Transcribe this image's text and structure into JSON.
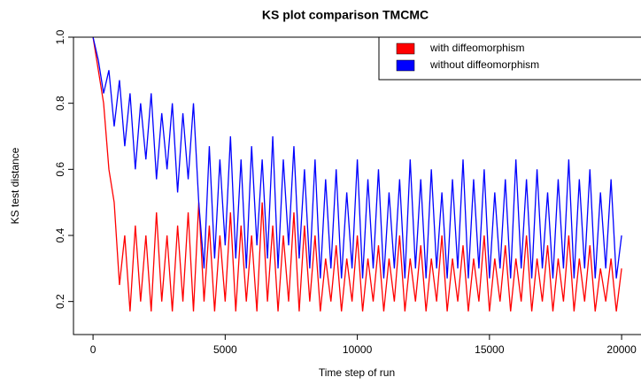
{
  "chart_data": {
    "type": "line",
    "title": "KS plot comparison TMCMC",
    "x_label": "Time step of run",
    "y_label": "KS test distance",
    "x": [
      0,
      200,
      400,
      600,
      800,
      1000,
      1200,
      1400,
      1600,
      1800,
      2000,
      2200,
      2400,
      2600,
      2800,
      3000,
      3200,
      3400,
      3600,
      3800,
      4000,
      4200,
      4400,
      4600,
      4800,
      5000,
      5200,
      5400,
      5600,
      5800,
      6000,
      6200,
      6400,
      6600,
      6800,
      7000,
      7200,
      7400,
      7600,
      7800,
      8000,
      8200,
      8400,
      8600,
      8800,
      9000,
      9200,
      9400,
      9600,
      9800,
      10000,
      10200,
      10400,
      10600,
      10800,
      11000,
      11200,
      11400,
      11600,
      11800,
      12000,
      12200,
      12400,
      12600,
      12800,
      13000,
      13200,
      13400,
      13600,
      13800,
      14000,
      14200,
      14400,
      14600,
      14800,
      15000,
      15200,
      15400,
      15600,
      15800,
      16000,
      16200,
      16400,
      16600,
      16800,
      17000,
      17200,
      17400,
      17600,
      17800,
      18000,
      18200,
      18400,
      18600,
      18800,
      19000,
      19200,
      19400,
      19600,
      19800,
      20000
    ],
    "series": [
      {
        "name": "with diffeomorphism",
        "color": "#ff0000",
        "values": [
          1.0,
          0.9,
          0.8,
          0.6,
          0.5,
          0.25,
          0.4,
          0.17,
          0.43,
          0.2,
          0.4,
          0.17,
          0.47,
          0.2,
          0.4,
          0.17,
          0.43,
          0.2,
          0.47,
          0.17,
          0.5,
          0.2,
          0.43,
          0.17,
          0.4,
          0.2,
          0.47,
          0.17,
          0.43,
          0.2,
          0.4,
          0.17,
          0.5,
          0.2,
          0.43,
          0.17,
          0.4,
          0.2,
          0.47,
          0.17,
          0.43,
          0.2,
          0.4,
          0.17,
          0.33,
          0.2,
          0.37,
          0.17,
          0.33,
          0.2,
          0.4,
          0.17,
          0.33,
          0.2,
          0.37,
          0.17,
          0.33,
          0.2,
          0.4,
          0.17,
          0.33,
          0.2,
          0.37,
          0.17,
          0.33,
          0.2,
          0.4,
          0.17,
          0.33,
          0.2,
          0.37,
          0.17,
          0.33,
          0.2,
          0.4,
          0.17,
          0.33,
          0.2,
          0.37,
          0.17,
          0.33,
          0.2,
          0.4,
          0.17,
          0.33,
          0.2,
          0.37,
          0.17,
          0.33,
          0.2,
          0.4,
          0.17,
          0.33,
          0.2,
          0.37,
          0.17,
          0.3,
          0.2,
          0.33,
          0.17,
          0.3
        ]
      },
      {
        "name": "without diffeomorphism",
        "color": "#0000ff",
        "values": [
          1.0,
          0.93,
          0.83,
          0.9,
          0.73,
          0.87,
          0.67,
          0.83,
          0.6,
          0.8,
          0.63,
          0.83,
          0.57,
          0.77,
          0.6,
          0.8,
          0.53,
          0.77,
          0.57,
          0.8,
          0.5,
          0.3,
          0.67,
          0.33,
          0.63,
          0.37,
          0.7,
          0.33,
          0.63,
          0.3,
          0.67,
          0.37,
          0.63,
          0.33,
          0.7,
          0.3,
          0.63,
          0.37,
          0.67,
          0.33,
          0.6,
          0.3,
          0.63,
          0.27,
          0.57,
          0.3,
          0.6,
          0.27,
          0.53,
          0.3,
          0.63,
          0.27,
          0.57,
          0.3,
          0.6,
          0.27,
          0.53,
          0.3,
          0.57,
          0.27,
          0.63,
          0.3,
          0.57,
          0.27,
          0.6,
          0.3,
          0.53,
          0.27,
          0.57,
          0.3,
          0.63,
          0.27,
          0.57,
          0.3,
          0.6,
          0.27,
          0.53,
          0.3,
          0.57,
          0.27,
          0.63,
          0.3,
          0.57,
          0.27,
          0.6,
          0.3,
          0.53,
          0.27,
          0.57,
          0.3,
          0.63,
          0.27,
          0.57,
          0.3,
          0.6,
          0.27,
          0.53,
          0.3,
          0.57,
          0.27,
          0.4
        ]
      }
    ],
    "xlim": [
      -740,
      20700
    ],
    "ylim": [
      0.1,
      1.0
    ],
    "xticks": [
      0,
      5000,
      10000,
      15000,
      20000
    ],
    "yticks": [
      0.2,
      0.4,
      0.6,
      0.8,
      {
        "value": 1,
        "label": "1.0"
      }
    ],
    "legend": "top-right"
  }
}
